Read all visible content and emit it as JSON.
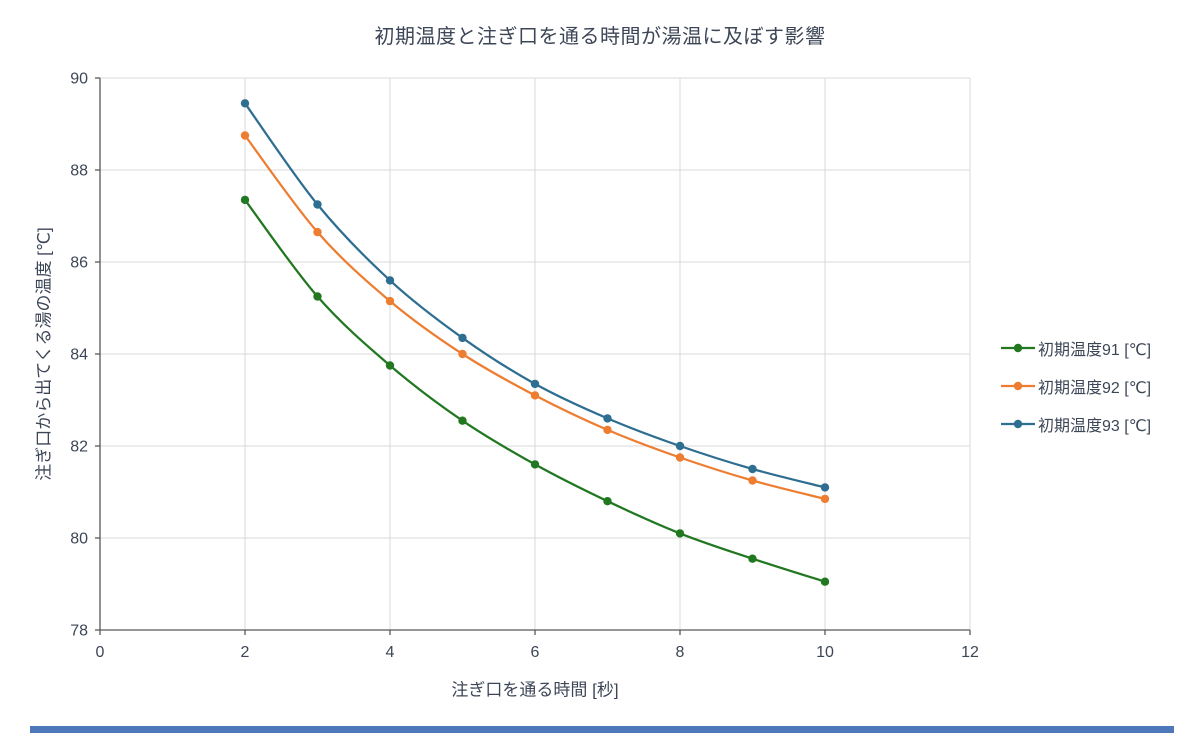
{
  "page": {
    "background": "#ffffff",
    "bottom_bar_color": "#4d79bb"
  },
  "colors": {
    "grid": "#d9d9d9",
    "axis": "#595959",
    "text": "#3d4657"
  },
  "chart_data": {
    "type": "line",
    "title": "初期温度と注ぎ口を通る時間が湯温に及ぼす影響",
    "xlabel": "注ぎ口を通る時間 [秒]",
    "ylabel": "注ぎ口から出てくる湯の温度 [℃]",
    "xlim": [
      0,
      12
    ],
    "ylim": [
      78,
      90
    ],
    "xticks": [
      0,
      2,
      4,
      6,
      8,
      10,
      12
    ],
    "yticks": [
      78,
      80,
      82,
      84,
      86,
      88,
      90
    ],
    "grid": true,
    "legend_position": "right",
    "marker": "circle",
    "smooth": true,
    "x": [
      2,
      3,
      4,
      5,
      6,
      7,
      8,
      9,
      10
    ],
    "series": [
      {
        "name": "初期温度91 [℃]",
        "color": "#217821",
        "values": [
          87.35,
          85.25,
          83.75,
          82.55,
          81.6,
          80.8,
          80.1,
          79.55,
          79.05
        ]
      },
      {
        "name": "初期温度92 [℃]",
        "color": "#ed7d31",
        "values": [
          88.75,
          86.65,
          85.15,
          84.0,
          83.1,
          82.35,
          81.75,
          81.25,
          80.85
        ]
      },
      {
        "name": "初期温度93 [℃]",
        "color": "#2e6e91",
        "values": [
          89.45,
          87.25,
          85.6,
          84.35,
          83.35,
          82.6,
          82.0,
          81.5,
          81.1
        ]
      }
    ]
  }
}
